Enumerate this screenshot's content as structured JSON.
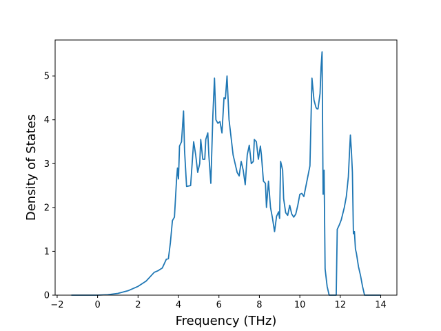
{
  "chart_data": {
    "type": "line",
    "title": "",
    "xlabel": "Frequency (THz)",
    "ylabel": "Density of States",
    "xlim": [
      -2.1,
      14.8
    ],
    "ylim": [
      0,
      5.82
    ],
    "xticks": [
      -2,
      0,
      2,
      4,
      6,
      8,
      10,
      12,
      14
    ],
    "yticks": [
      0,
      1,
      2,
      3,
      4,
      5
    ],
    "grid": false,
    "legend": "none",
    "series": [
      {
        "color": "#1f77b4",
        "points": [
          [
            -1.3,
            0.0
          ],
          [
            0.0,
            0.0
          ],
          [
            0.5,
            0.01
          ],
          [
            1.0,
            0.04
          ],
          [
            1.5,
            0.1
          ],
          [
            2.0,
            0.2
          ],
          [
            2.4,
            0.32
          ],
          [
            2.6,
            0.42
          ],
          [
            2.8,
            0.52
          ],
          [
            3.0,
            0.56
          ],
          [
            3.2,
            0.62
          ],
          [
            3.3,
            0.72
          ],
          [
            3.4,
            0.82
          ],
          [
            3.5,
            0.83
          ],
          [
            3.6,
            1.2
          ],
          [
            3.7,
            1.7
          ],
          [
            3.8,
            1.78
          ],
          [
            3.9,
            2.6
          ],
          [
            3.95,
            2.9
          ],
          [
            4.0,
            2.65
          ],
          [
            4.05,
            3.4
          ],
          [
            4.15,
            3.5
          ],
          [
            4.25,
            4.2
          ],
          [
            4.3,
            3.3
          ],
          [
            4.4,
            2.48
          ],
          [
            4.6,
            2.5
          ],
          [
            4.75,
            3.5
          ],
          [
            4.85,
            3.2
          ],
          [
            4.95,
            2.8
          ],
          [
            5.05,
            3.0
          ],
          [
            5.1,
            3.55
          ],
          [
            5.2,
            3.1
          ],
          [
            5.3,
            3.1
          ],
          [
            5.35,
            3.55
          ],
          [
            5.45,
            3.7
          ],
          [
            5.5,
            3.2
          ],
          [
            5.6,
            2.55
          ],
          [
            5.7,
            4.1
          ],
          [
            5.78,
            4.95
          ],
          [
            5.85,
            4.0
          ],
          [
            5.95,
            3.92
          ],
          [
            6.05,
            3.96
          ],
          [
            6.15,
            3.7
          ],
          [
            6.25,
            4.5
          ],
          [
            6.32,
            4.48
          ],
          [
            6.4,
            5.0
          ],
          [
            6.5,
            4.0
          ],
          [
            6.6,
            3.6
          ],
          [
            6.7,
            3.2
          ],
          [
            6.8,
            3.0
          ],
          [
            6.9,
            2.8
          ],
          [
            7.0,
            2.72
          ],
          [
            7.1,
            3.05
          ],
          [
            7.2,
            2.85
          ],
          [
            7.3,
            2.52
          ],
          [
            7.4,
            3.2
          ],
          [
            7.5,
            3.42
          ],
          [
            7.6,
            3.0
          ],
          [
            7.7,
            3.05
          ],
          [
            7.75,
            3.55
          ],
          [
            7.85,
            3.5
          ],
          [
            7.95,
            3.1
          ],
          [
            8.05,
            3.4
          ],
          [
            8.1,
            3.2
          ],
          [
            8.2,
            2.6
          ],
          [
            8.3,
            2.55
          ],
          [
            8.35,
            2.0
          ],
          [
            8.45,
            2.6
          ],
          [
            8.55,
            2.0
          ],
          [
            8.65,
            1.75
          ],
          [
            8.75,
            1.45
          ],
          [
            8.85,
            1.8
          ],
          [
            8.95,
            1.9
          ],
          [
            9.0,
            1.75
          ],
          [
            9.05,
            3.05
          ],
          [
            9.15,
            2.85
          ],
          [
            9.2,
            2.2
          ],
          [
            9.3,
            1.88
          ],
          [
            9.4,
            1.82
          ],
          [
            9.5,
            2.05
          ],
          [
            9.6,
            1.85
          ],
          [
            9.7,
            1.78
          ],
          [
            9.8,
            1.85
          ],
          [
            9.9,
            2.05
          ],
          [
            10.0,
            2.3
          ],
          [
            10.1,
            2.32
          ],
          [
            10.2,
            2.25
          ],
          [
            10.35,
            2.6
          ],
          [
            10.5,
            2.95
          ],
          [
            10.6,
            4.95
          ],
          [
            10.7,
            4.45
          ],
          [
            10.8,
            4.28
          ],
          [
            10.85,
            4.25
          ],
          [
            10.9,
            4.25
          ],
          [
            11.0,
            4.6
          ],
          [
            11.05,
            5.2
          ],
          [
            11.1,
            5.55
          ],
          [
            11.15,
            2.3
          ],
          [
            11.2,
            2.85
          ],
          [
            11.25,
            0.6
          ],
          [
            11.35,
            0.2
          ],
          [
            11.45,
            0.0
          ],
          [
            11.8,
            0.0
          ],
          [
            11.85,
            1.5
          ],
          [
            11.95,
            1.6
          ],
          [
            12.05,
            1.72
          ],
          [
            12.2,
            2.0
          ],
          [
            12.3,
            2.25
          ],
          [
            12.4,
            2.7
          ],
          [
            12.45,
            3.2
          ],
          [
            12.5,
            3.65
          ],
          [
            12.55,
            3.3
          ],
          [
            12.6,
            2.8
          ],
          [
            12.65,
            1.4
          ],
          [
            12.7,
            1.45
          ],
          [
            12.75,
            1.05
          ],
          [
            12.8,
            0.95
          ],
          [
            12.9,
            0.65
          ],
          [
            13.0,
            0.45
          ],
          [
            13.1,
            0.2
          ],
          [
            13.2,
            0.0
          ],
          [
            14.0,
            0.0
          ]
        ]
      }
    ]
  }
}
